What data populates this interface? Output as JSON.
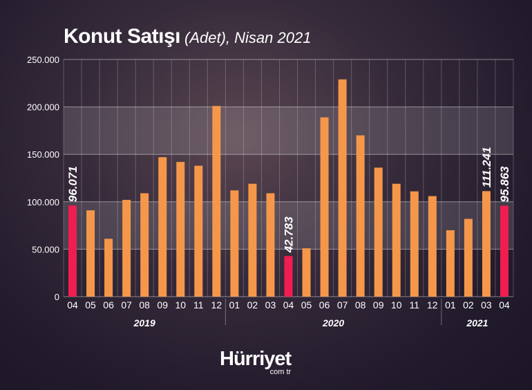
{
  "title": {
    "main": "Konut Satışı",
    "unit": "(Adet),",
    "period": " Nisan 2021"
  },
  "logo": {
    "main": "Hürriyet",
    "sub": "com tr"
  },
  "colors": {
    "bar": "#f5974a",
    "highlight": "#f01d50",
    "band": "#ffffff",
    "grid": "#ffffff"
  },
  "chart_data": {
    "type": "bar",
    "ylim": [
      0,
      250000
    ],
    "yticks": [
      0,
      50000,
      100000,
      150000,
      200000,
      250000
    ],
    "ytick_labels": [
      "0",
      "50.000",
      "100.000",
      "150.000",
      "200.000",
      "250.000"
    ],
    "categories": [
      "04",
      "05",
      "06",
      "07",
      "08",
      "09",
      "10",
      "11",
      "12",
      "01",
      "02",
      "03",
      "04",
      "05",
      "06",
      "07",
      "08",
      "09",
      "10",
      "11",
      "12",
      "01",
      "02",
      "03",
      "04"
    ],
    "years": [
      {
        "label": "2019",
        "from": 0,
        "to": 8
      },
      {
        "label": "2020",
        "from": 9,
        "to": 20
      },
      {
        "label": "2021",
        "from": 21,
        "to": 24
      }
    ],
    "values": [
      96071,
      91000,
      61000,
      102000,
      109000,
      147000,
      142000,
      138000,
      201000,
      112000,
      119000,
      109000,
      42783,
      51000,
      189000,
      229000,
      170000,
      136000,
      119000,
      111000,
      106000,
      70000,
      82000,
      111241,
      95863
    ],
    "highlighted": [
      0,
      12,
      24
    ],
    "data_labels": [
      {
        "index": 0,
        "text": "96.071"
      },
      {
        "index": 12,
        "text": "42.783"
      },
      {
        "index": 23,
        "text": "111.241"
      },
      {
        "index": 24,
        "text": "95.863"
      }
    ],
    "bands": [
      [
        50000,
        100000
      ],
      [
        150000,
        200000
      ]
    ],
    "grid": true
  }
}
